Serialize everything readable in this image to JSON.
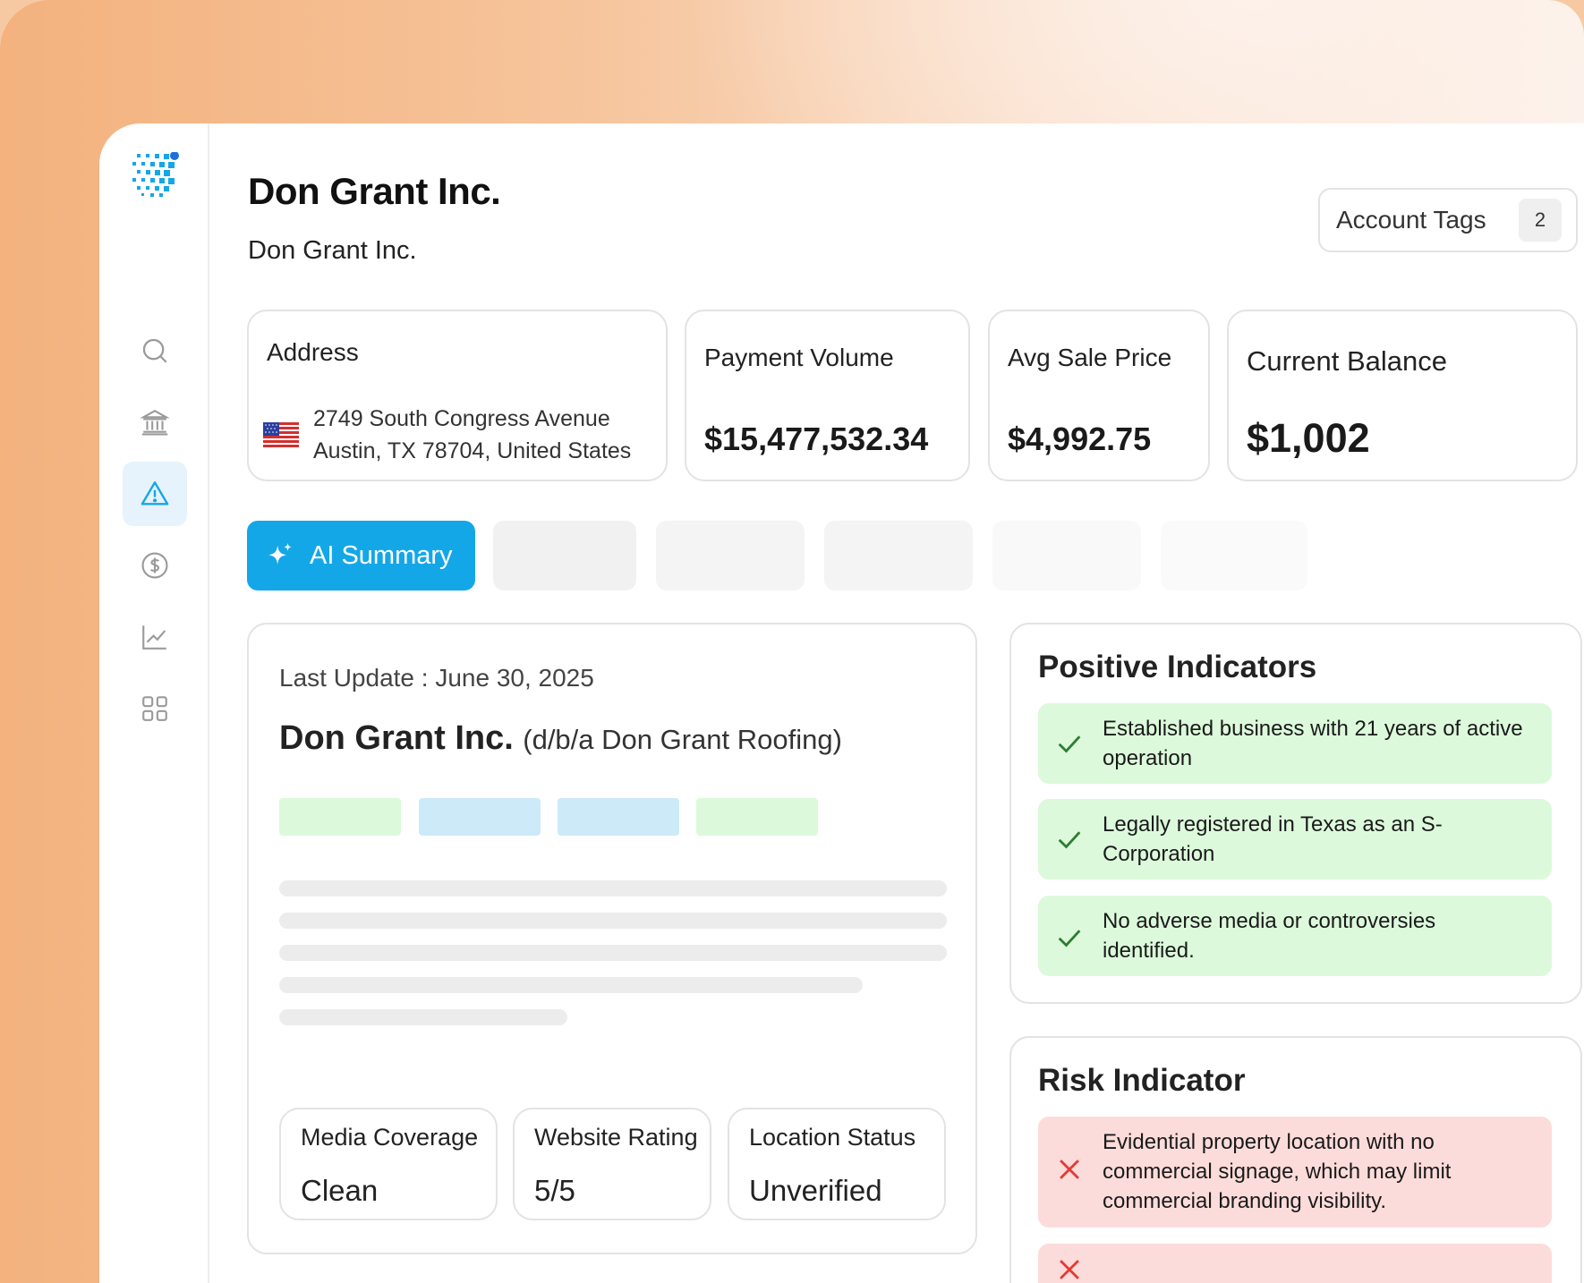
{
  "colors": {
    "accent": "#14a7e8",
    "positive_bg": "#dcfadb",
    "positive_icon": "#2e7d32",
    "negative_bg": "#fcdcdb",
    "negative_icon": "#e53935"
  },
  "sidebar": {
    "items": [
      {
        "icon": "search-icon",
        "active": false
      },
      {
        "icon": "bank-icon",
        "active": false
      },
      {
        "icon": "alert-triangle-icon",
        "active": true
      },
      {
        "icon": "dollar-circle-icon",
        "active": false
      },
      {
        "icon": "chart-line-icon",
        "active": false
      },
      {
        "icon": "grid-icon",
        "active": false
      }
    ]
  },
  "header": {
    "title": "Don Grant Inc.",
    "subtitle": "Don Grant Inc.",
    "account_tags_label": "Account Tags",
    "account_tags_count": "2"
  },
  "stats": {
    "address": {
      "label": "Address",
      "line1": "2749 South Congress Avenue",
      "line2": "Austin, TX 78704, United States",
      "flag_icon": "us-flag-icon"
    },
    "payment_volume": {
      "label": "Payment Volume",
      "value": "$15,477,532.34"
    },
    "avg_sale_price": {
      "label": "Avg Sale Price",
      "value": "$4,992.75"
    },
    "current_balance": {
      "label": "Current Balance",
      "value": "$1,002"
    }
  },
  "tabs": {
    "active_label": "AI Summary",
    "active_icon": "sparkle-icon"
  },
  "summary": {
    "last_update": "Last Update : June 30, 2025",
    "company_name": "Don Grant Inc.",
    "dba": "(d/b/a Don Grant Roofing)",
    "metrics": [
      {
        "label": "Media Coverage",
        "value": "Clean"
      },
      {
        "label": "Website Rating",
        "value": "5/5"
      },
      {
        "label": "Location Status",
        "value": "Unverified"
      }
    ]
  },
  "positive_indicators": {
    "title": "Positive Indicators",
    "items": [
      "Established business with 21 years of active operation",
      "Legally registered in Texas as an S-Corporation",
      "No adverse media or controversies identified."
    ]
  },
  "risk_indicator": {
    "title": "Risk Indicator",
    "items": [
      "Evidential property location with no commercial signage, which may limit commercial branding visibility."
    ]
  }
}
